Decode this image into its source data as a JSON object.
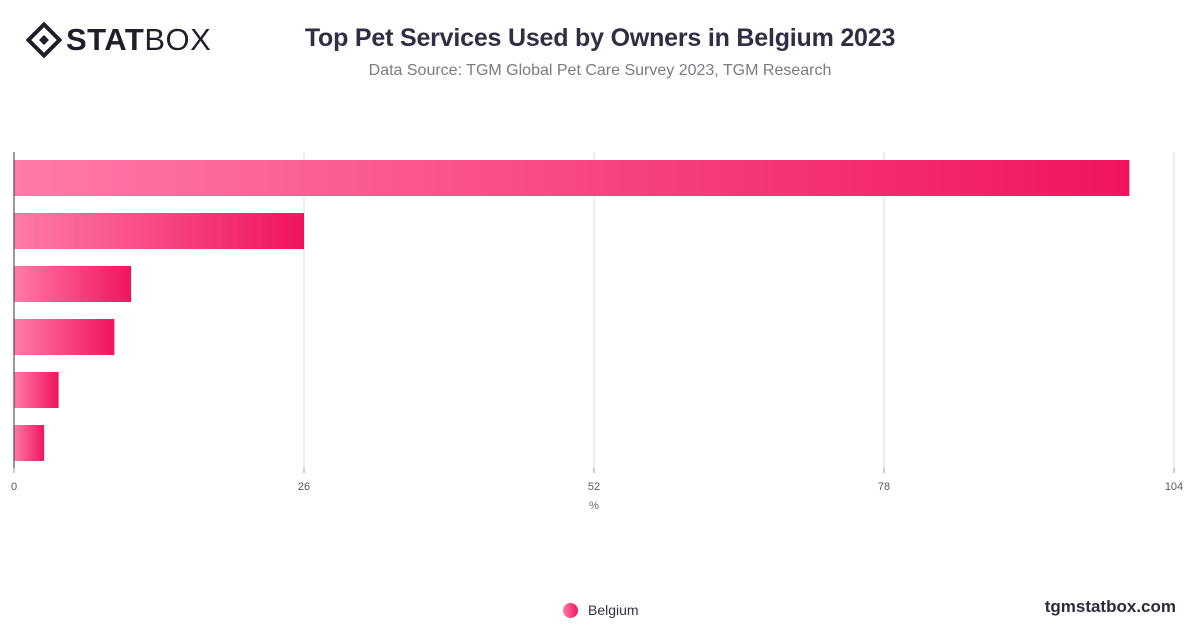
{
  "header": {
    "logo_bold": "STAT",
    "logo_light": "BOX",
    "title": "Top Pet Services Used by Owners in Belgium 2023",
    "subtitle": "Data Source: TGM Global Pet Care Survey 2023, TGM Research"
  },
  "legend": {
    "label": "Belgium"
  },
  "footer": {
    "site": "tgmstatbox.com"
  },
  "colors": {
    "bar_start": "#ff7aa8",
    "bar_end": "#f0145f",
    "grid": "#dcdcdc",
    "axis": "#333333"
  },
  "chart_data": {
    "type": "bar",
    "orientation": "horizontal",
    "title": "Top Pet Services Used by Owners in Belgium 2023",
    "subtitle": "Data Source: TGM Global Pet Care Survey 2023, TGM Research",
    "xlabel": "%",
    "ylabel": "",
    "xlim": [
      0,
      104
    ],
    "xticks": [
      0,
      26,
      52,
      78,
      104
    ],
    "grid": true,
    "legend_position": "bottom",
    "categories": [
      "",
      "",
      "",
      "",
      "",
      ""
    ],
    "series": [
      {
        "name": "Belgium",
        "values": [
          100,
          26,
          10.5,
          9,
          4,
          2.7
        ]
      }
    ]
  }
}
